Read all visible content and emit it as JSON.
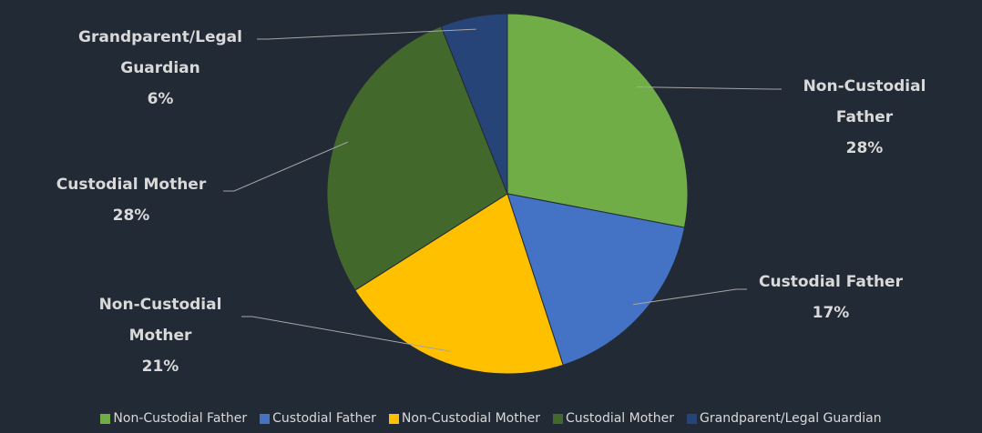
{
  "chart_data": {
    "type": "pie",
    "categories": [
      "Non-Custodial Father",
      "Custodial Father",
      "Non-Custodial Mother",
      "Custodial Mother",
      "Grandparent/Legal Guardian"
    ],
    "values": [
      28,
      17,
      21,
      28,
      6
    ],
    "value_labels": [
      "28%",
      "17%",
      "21%",
      "28%",
      "6%"
    ],
    "colors": [
      "#70ad47",
      "#4472c4",
      "#ffc000",
      "#43682b",
      "#264478"
    ],
    "legend": "bottom"
  }
}
